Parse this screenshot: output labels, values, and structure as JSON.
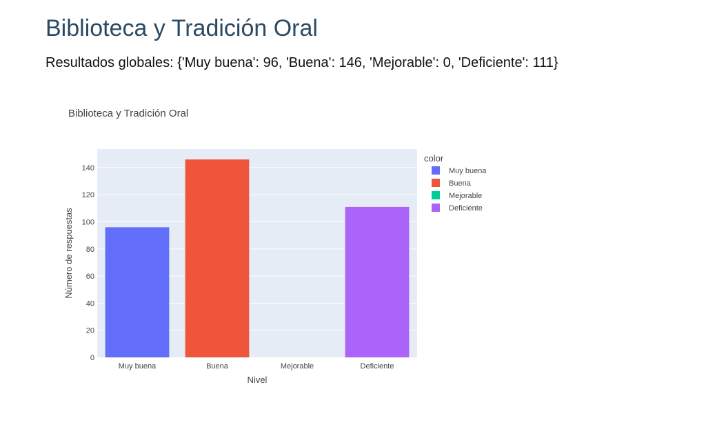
{
  "page": {
    "title": "Biblioteca y Tradición Oral",
    "summary": "Resultados globales: {'Muy buena': 96, 'Buena': 146, 'Mejorable': 0, 'Deficiente': 111}"
  },
  "chart_data": {
    "type": "bar",
    "title": "Biblioteca y Tradición Oral",
    "xlabel": "Nivel",
    "ylabel": "Número de respuestas",
    "categories": [
      "Muy buena",
      "Buena",
      "Mejorable",
      "Deficiente"
    ],
    "values": [
      96,
      146,
      0,
      111
    ],
    "colors": [
      "#636efa",
      "#ef553b",
      "#00cc96",
      "#ab63fa"
    ],
    "ylim": [
      0,
      153.7
    ],
    "yticks": [
      0,
      20,
      40,
      60,
      80,
      100,
      120,
      140
    ],
    "legend": {
      "title": "color",
      "placement": "right",
      "items": [
        "Muy buena",
        "Buena",
        "Mejorable",
        "Deficiente"
      ]
    },
    "grid": true,
    "plot_background": "#e5ecf6"
  }
}
